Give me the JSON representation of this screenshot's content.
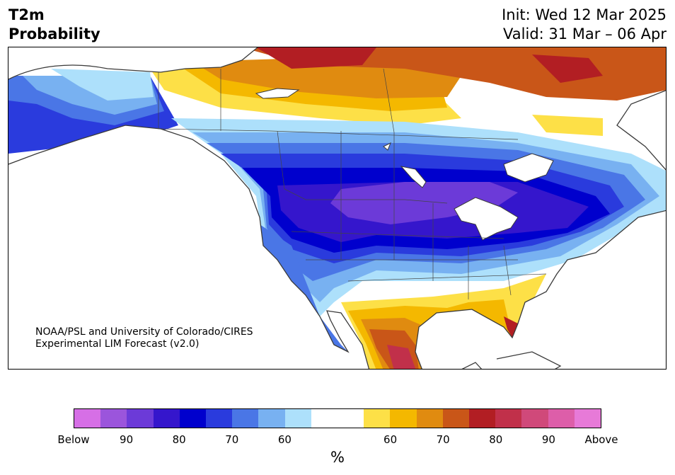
{
  "header": {
    "title_line1": "T2m",
    "title_line2": "Probability",
    "init": "Init: Wed 12 Mar 2025",
    "valid": "Valid: 31 Mar – 06 Apr"
  },
  "credit": {
    "line1": "NOAA/PSL and University of Colorado/CIRES",
    "line2": "Experimental LIM Forecast (v2.0)"
  },
  "colorbar": {
    "colors": [
      "#d66fe6",
      "#9b55dc",
      "#6c3ad8",
      "#3516cc",
      "#0000cd",
      "#2a3bdd",
      "#4a76e6",
      "#78b1f1",
      "#ade0fb",
      "#ffffff",
      "#ffffff",
      "#fde047",
      "#f4b800",
      "#e08b10",
      "#c95618",
      "#b21e23",
      "#c1304a",
      "#d0497a",
      "#dd5ea9",
      "#e77ad8"
    ],
    "tick_labels": [
      "Below",
      "90",
      "80",
      "70",
      "60",
      "60",
      "70",
      "80",
      "90",
      "Above"
    ],
    "unit": "%"
  },
  "map_palette": {
    "below_faint": "#ade0fb",
    "below_light": "#78b1f1",
    "below_mid": "#4a76e6",
    "below_strong": "#2a3bdd",
    "below_80": "#0000cd",
    "below_85": "#3516cc",
    "below_90": "#6c3ad8",
    "above_55": "#fde047",
    "above_60": "#f4b800",
    "above_65": "#e08b10",
    "above_70": "#c95618",
    "above_75": "#b21e23",
    "above_80": "#c1304a",
    "borders": "#3a3a3a"
  }
}
